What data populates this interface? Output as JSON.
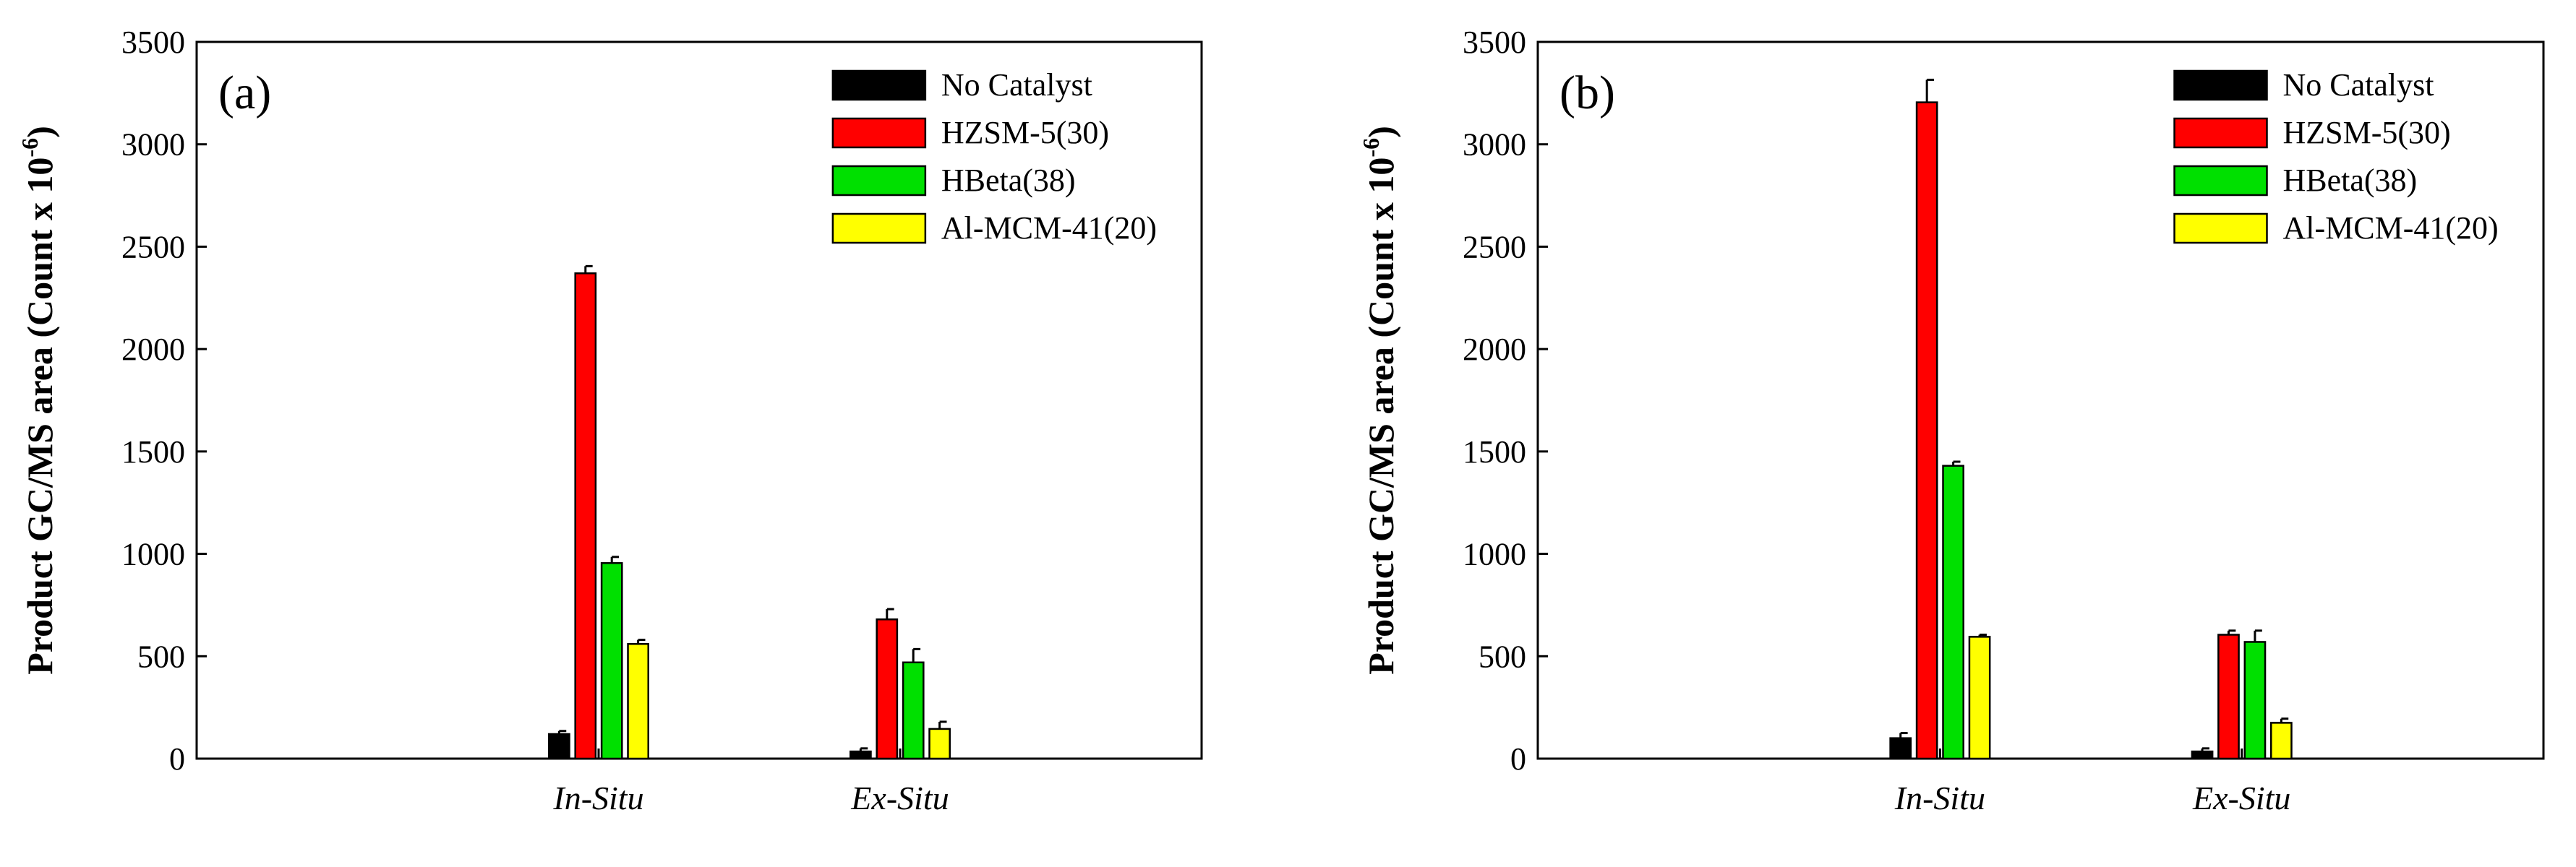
{
  "chart_data": [
    {
      "type": "bar",
      "panel_label": "(a)",
      "categories": [
        "In-Situ",
        "Ex-Situ"
      ],
      "series": [
        {
          "name": "No Catalyst",
          "color": "#000000",
          "values": [
            120,
            35
          ],
          "errors": [
            15,
            15
          ]
        },
        {
          "name": "HZSM-5(30)",
          "color": "#ff0000",
          "values": [
            2370,
            680
          ],
          "errors": [
            35,
            50
          ]
        },
        {
          "name": "HBeta(38)",
          "color": "#00e000",
          "values": [
            955,
            470
          ],
          "errors": [
            30,
            65
          ]
        },
        {
          "name": "Al-MCM-41(20)",
          "color": "#ffff00",
          "values": [
            560,
            145
          ],
          "errors": [
            20,
            35
          ]
        }
      ],
      "ylabel": "Product GC/MS area (Count x 10",
      "ylabel_exponent": "-6",
      "ylabel_suffix": ")",
      "ylim": [
        0,
        3500
      ],
      "yticks": [
        "0",
        "500",
        "1000",
        "1500",
        "2000",
        "2500",
        "3000",
        "3500"
      ],
      "legend_position": "top-right",
      "grid": false
    },
    {
      "type": "bar",
      "panel_label": "(b)",
      "categories": [
        "In-Situ",
        "Ex-Situ"
      ],
      "series": [
        {
          "name": "No Catalyst",
          "color": "#000000",
          "values": [
            100,
            35
          ],
          "errors": [
            25,
            15
          ]
        },
        {
          "name": "HZSM-5(30)",
          "color": "#ff0000",
          "values": [
            3205,
            605
          ],
          "errors": [
            110,
            20
          ]
        },
        {
          "name": "HBeta(38)",
          "color": "#00e000",
          "values": [
            1430,
            570
          ],
          "errors": [
            20,
            55
          ]
        },
        {
          "name": "Al-MCM-41(20)",
          "color": "#ffff00",
          "values": [
            595,
            175
          ],
          "errors": [
            10,
            20
          ]
        }
      ],
      "ylabel": "Product GC/MS area (Count x 10",
      "ylabel_exponent": "-6",
      "ylabel_suffix": ")",
      "ylim": [
        0,
        3500
      ],
      "yticks": [
        "0",
        "500",
        "1000",
        "1500",
        "2000",
        "2500",
        "3000",
        "3500"
      ],
      "legend_position": "top-right",
      "grid": false
    }
  ]
}
